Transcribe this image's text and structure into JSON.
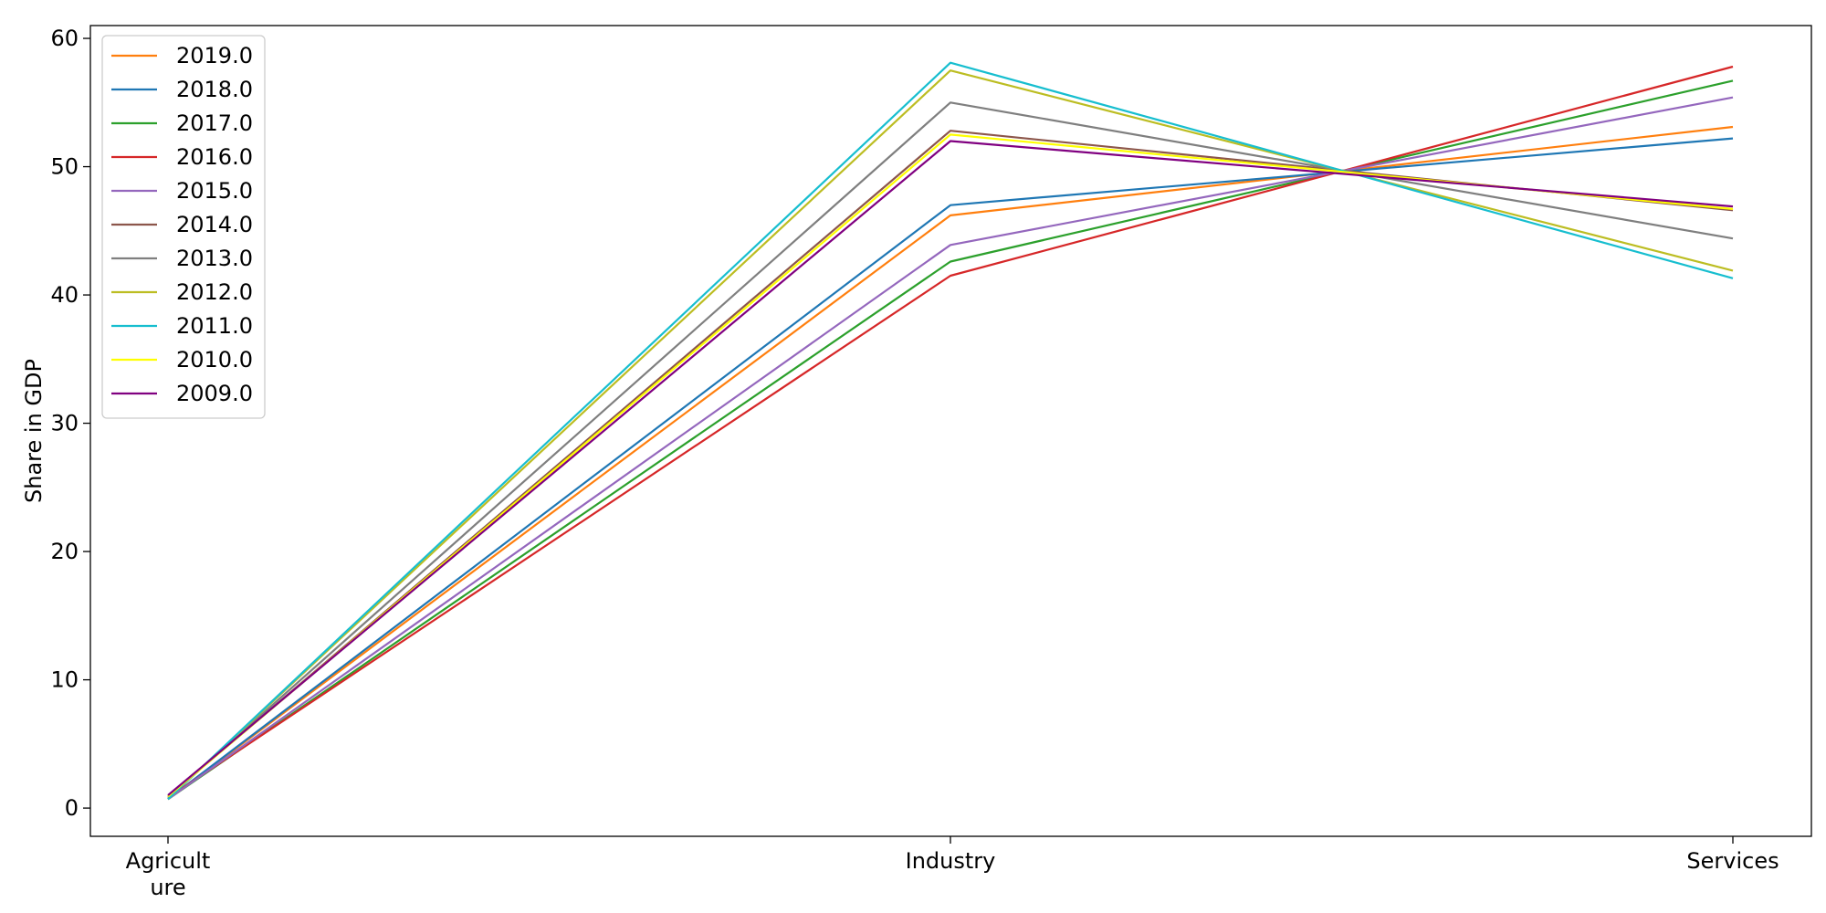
{
  "chart_data": {
    "type": "line",
    "title": "",
    "xlabel": "",
    "ylabel": "Share in GDP",
    "categories": [
      {
        "line1": "Agricult",
        "line2": "ure"
      },
      {
        "line1": "Industry",
        "line2": ""
      },
      {
        "line1": "Services",
        "line2": ""
      }
    ],
    "ylim": [
      -2.2,
      61
    ],
    "yticks": [
      "0",
      "10",
      "20",
      "30",
      "40",
      "50",
      "60"
    ],
    "grid": false,
    "legend_position": "top-left",
    "series": [
      {
        "name": "2019.0",
        "color": "#ff7f0e",
        "values": [
          0.7,
          46.2,
          53.1
        ]
      },
      {
        "name": "2018.0",
        "color": "#1f77b4",
        "values": [
          0.7,
          47.0,
          52.2
        ]
      },
      {
        "name": "2017.0",
        "color": "#2ca02c",
        "values": [
          0.7,
          42.6,
          56.7
        ]
      },
      {
        "name": "2016.0",
        "color": "#d62728",
        "values": [
          0.8,
          41.5,
          57.8
        ]
      },
      {
        "name": "2015.0",
        "color": "#9467bd",
        "values": [
          0.7,
          43.9,
          55.4
        ]
      },
      {
        "name": "2014.0",
        "color": "#8c564b",
        "values": [
          0.9,
          52.8,
          46.6
        ]
      },
      {
        "name": "2013.0",
        "color": "#7f7f7f",
        "values": [
          0.8,
          55.0,
          44.4
        ]
      },
      {
        "name": "2012.0",
        "color": "#bcbd22",
        "values": [
          0.7,
          57.5,
          41.9
        ]
      },
      {
        "name": "2011.0",
        "color": "#17becf",
        "values": [
          0.7,
          58.1,
          41.3
        ]
      },
      {
        "name": "2010.0",
        "color": "#ffff00",
        "values": [
          0.9,
          52.5,
          46.7
        ]
      },
      {
        "name": "2009.0",
        "color": "#800080",
        "values": [
          1.0,
          52.0,
          46.9
        ]
      }
    ]
  }
}
